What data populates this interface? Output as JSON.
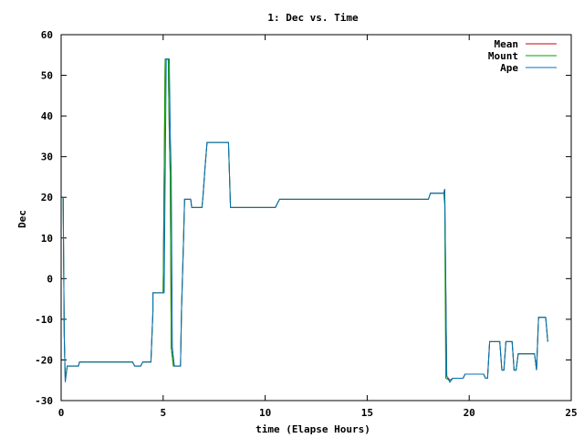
{
  "chart_data": {
    "type": "line",
    "title": "1: Dec vs. Time",
    "xlabel": "time (Elapse Hours)",
    "ylabel": "Dec",
    "xlim": [
      0,
      25
    ],
    "ylim": [
      -30,
      60
    ],
    "xticks": [
      0,
      5,
      10,
      15,
      20,
      25
    ],
    "yticks": [
      -30,
      -20,
      -10,
      0,
      10,
      20,
      30,
      40,
      50,
      60
    ],
    "grid": false,
    "legend_position": "top-right",
    "series": [
      {
        "name": "Mean",
        "color": "#cc0000",
        "points": [
          [
            0,
            20
          ],
          [
            0.1,
            20
          ],
          [
            0.15,
            -14
          ],
          [
            0.2,
            -25
          ],
          [
            0.3,
            -21.5
          ],
          [
            0.85,
            -21.5
          ],
          [
            0.9,
            -20.5
          ],
          [
            3.5,
            -20.5
          ],
          [
            3.6,
            -21.5
          ],
          [
            3.9,
            -21.5
          ],
          [
            4.0,
            -20.5
          ],
          [
            4.4,
            -20.5
          ],
          [
            4.5,
            -8
          ],
          [
            4.5,
            -3.5
          ],
          [
            4.95,
            -3.5
          ],
          [
            5.0,
            -3.5
          ],
          [
            5.1,
            54
          ],
          [
            5.25,
            54
          ],
          [
            5.3,
            36
          ],
          [
            5.35,
            25
          ],
          [
            5.4,
            -17
          ],
          [
            5.5,
            -21.5
          ],
          [
            5.85,
            -21.5
          ],
          [
            5.9,
            -8
          ],
          [
            6.0,
            10
          ],
          [
            6.05,
            19.5
          ],
          [
            6.35,
            19.5
          ],
          [
            6.4,
            17.5
          ],
          [
            6.9,
            17.5
          ],
          [
            6.95,
            20
          ],
          [
            7.05,
            27
          ],
          [
            7.15,
            33.5
          ],
          [
            8.2,
            33.5
          ],
          [
            8.3,
            17.5
          ],
          [
            10.5,
            17.5
          ],
          [
            10.7,
            19.5
          ],
          [
            14.7,
            19.5
          ],
          [
            18.0,
            19.5
          ],
          [
            18.1,
            21
          ],
          [
            18.75,
            21
          ],
          [
            18.8,
            22
          ],
          [
            18.9,
            -24
          ],
          [
            19.05,
            -25
          ],
          [
            19.2,
            -24.5
          ],
          [
            19.7,
            -24.5
          ],
          [
            19.8,
            -23.5
          ],
          [
            20.7,
            -23.5
          ],
          [
            20.8,
            -24.5
          ],
          [
            20.9,
            -24.5
          ],
          [
            21.0,
            -15.5
          ],
          [
            21.5,
            -15.5
          ],
          [
            21.6,
            -22.5
          ],
          [
            21.7,
            -22.5
          ],
          [
            21.8,
            -15.5
          ],
          [
            22.1,
            -15.5
          ],
          [
            22.2,
            -22.5
          ],
          [
            22.3,
            -22.5
          ],
          [
            22.4,
            -18.5
          ],
          [
            23.2,
            -18.5
          ],
          [
            23.3,
            -22.5
          ],
          [
            23.4,
            -9.5
          ],
          [
            23.75,
            -9.5
          ],
          [
            23.85,
            -15.5
          ]
        ]
      },
      {
        "name": "Mount",
        "color": "#00a000",
        "points": [
          [
            0,
            20
          ],
          [
            0.1,
            20
          ],
          [
            0.15,
            -14
          ],
          [
            0.2,
            -25
          ],
          [
            0.3,
            -21.5
          ],
          [
            0.85,
            -21.5
          ],
          [
            0.9,
            -20.5
          ],
          [
            3.5,
            -20.5
          ],
          [
            3.6,
            -21.5
          ],
          [
            3.9,
            -21.5
          ],
          [
            4.0,
            -20.5
          ],
          [
            4.4,
            -20.5
          ],
          [
            4.5,
            -8
          ],
          [
            4.5,
            -3.5
          ],
          [
            4.95,
            -3.5
          ],
          [
            5.0,
            -3.5
          ],
          [
            5.05,
            25
          ],
          [
            5.1,
            54
          ],
          [
            5.25,
            54
          ],
          [
            5.3,
            36
          ],
          [
            5.35,
            25
          ],
          [
            5.4,
            -17
          ],
          [
            5.5,
            -21.5
          ],
          [
            5.85,
            -21.5
          ],
          [
            5.9,
            -8
          ],
          [
            6.0,
            10
          ],
          [
            6.05,
            19.5
          ],
          [
            6.35,
            19.5
          ],
          [
            6.4,
            17.5
          ],
          [
            6.9,
            17.5
          ],
          [
            6.95,
            20
          ],
          [
            7.05,
            27
          ],
          [
            7.15,
            33.5
          ],
          [
            8.2,
            33.5
          ],
          [
            8.3,
            17.5
          ],
          [
            10.5,
            17.5
          ],
          [
            10.7,
            19.5
          ],
          [
            14.7,
            19.5
          ],
          [
            18.0,
            19.5
          ],
          [
            18.1,
            21
          ],
          [
            18.75,
            21
          ],
          [
            18.8,
            18
          ],
          [
            18.85,
            -24.5
          ],
          [
            19.05,
            -25
          ],
          [
            19.2,
            -24.5
          ],
          [
            19.7,
            -24.5
          ],
          [
            19.8,
            -23.5
          ],
          [
            20.7,
            -23.5
          ],
          [
            20.8,
            -24.5
          ],
          [
            20.9,
            -24.5
          ],
          [
            21.0,
            -15.5
          ],
          [
            21.5,
            -15.5
          ],
          [
            21.6,
            -22.5
          ],
          [
            21.7,
            -22.5
          ],
          [
            21.8,
            -15.5
          ],
          [
            22.1,
            -15.5
          ],
          [
            22.2,
            -22.5
          ],
          [
            22.3,
            -22.5
          ],
          [
            22.4,
            -18.5
          ],
          [
            23.2,
            -18.5
          ],
          [
            23.3,
            -22.5
          ],
          [
            23.4,
            -9.5
          ],
          [
            23.75,
            -9.5
          ],
          [
            23.85,
            -15.5
          ]
        ]
      },
      {
        "name": "Ape",
        "color": "#0070c0",
        "points": [
          [
            0,
            20
          ],
          [
            0.1,
            20
          ],
          [
            0.15,
            -14
          ],
          [
            0.2,
            -25.5
          ],
          [
            0.3,
            -21.5
          ],
          [
            0.85,
            -21.5
          ],
          [
            0.9,
            -20.5
          ],
          [
            3.5,
            -20.5
          ],
          [
            3.6,
            -21.5
          ],
          [
            3.9,
            -21.5
          ],
          [
            4.0,
            -20.5
          ],
          [
            4.4,
            -20.5
          ],
          [
            4.5,
            -8
          ],
          [
            4.5,
            -3.5
          ],
          [
            4.95,
            -3.5
          ],
          [
            5.05,
            -3.5
          ],
          [
            5.15,
            54
          ],
          [
            5.3,
            54
          ],
          [
            5.35,
            36
          ],
          [
            5.4,
            25
          ],
          [
            5.45,
            -17
          ],
          [
            5.55,
            -21.5
          ],
          [
            5.85,
            -21.5
          ],
          [
            5.9,
            -8
          ],
          [
            6.0,
            10
          ],
          [
            6.05,
            19.5
          ],
          [
            6.35,
            19.5
          ],
          [
            6.4,
            17.5
          ],
          [
            6.9,
            17.5
          ],
          [
            6.95,
            20
          ],
          [
            7.05,
            27
          ],
          [
            7.15,
            33.5
          ],
          [
            8.2,
            33.5
          ],
          [
            8.3,
            17.5
          ],
          [
            10.5,
            17.5
          ],
          [
            10.7,
            19.5
          ],
          [
            14.7,
            19.5
          ],
          [
            18.0,
            19.5
          ],
          [
            18.1,
            21
          ],
          [
            18.75,
            21
          ],
          [
            18.8,
            22
          ],
          [
            18.9,
            -24
          ],
          [
            19.05,
            -25.5
          ],
          [
            19.2,
            -24.5
          ],
          [
            19.7,
            -24.5
          ],
          [
            19.8,
            -23.5
          ],
          [
            20.7,
            -23.5
          ],
          [
            20.8,
            -24.5
          ],
          [
            20.9,
            -24.5
          ],
          [
            21.0,
            -15.5
          ],
          [
            21.5,
            -15.5
          ],
          [
            21.6,
            -22.5
          ],
          [
            21.7,
            -22.5
          ],
          [
            21.8,
            -15.5
          ],
          [
            22.1,
            -15.5
          ],
          [
            22.2,
            -22.5
          ],
          [
            22.3,
            -22.5
          ],
          [
            22.4,
            -18.5
          ],
          [
            23.2,
            -18.5
          ],
          [
            23.3,
            -22.5
          ],
          [
            23.4,
            -9.5
          ],
          [
            23.75,
            -9.5
          ],
          [
            23.85,
            -15.5
          ]
        ]
      }
    ]
  }
}
